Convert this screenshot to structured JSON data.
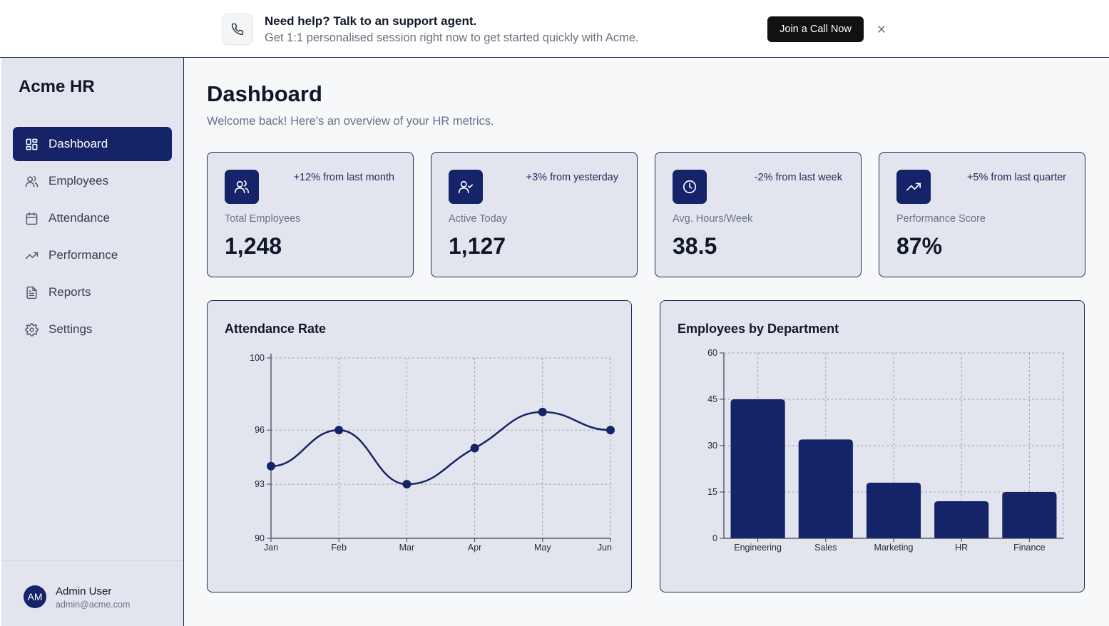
{
  "banner": {
    "title": "Need help? Talk to an support agent.",
    "subtitle": "Get 1:1 personalised session right now to get started quickly with Acme.",
    "cta_label": "Join a Call Now",
    "icon": "phone-icon",
    "close_icon": "close-icon"
  },
  "sidebar": {
    "brand": "Acme HR",
    "items": [
      {
        "label": "Dashboard",
        "icon": "dashboard-icon",
        "active": true
      },
      {
        "label": "Employees",
        "icon": "users-icon",
        "active": false
      },
      {
        "label": "Attendance",
        "icon": "calendar-icon",
        "active": false
      },
      {
        "label": "Performance",
        "icon": "trending-up-icon",
        "active": false
      },
      {
        "label": "Reports",
        "icon": "file-text-icon",
        "active": false
      },
      {
        "label": "Settings",
        "icon": "gear-icon",
        "active": false
      }
    ],
    "user": {
      "initials": "AM",
      "name": "Admin User",
      "email": "admin@acme.com"
    }
  },
  "main": {
    "title": "Dashboard",
    "subtitle": "Welcome back! Here's an overview of your HR metrics."
  },
  "stats": [
    {
      "label": "Total Employees",
      "value": "1,248",
      "change": "+12% from last month",
      "icon": "users-icon"
    },
    {
      "label": "Active Today",
      "value": "1,127",
      "change": "+3% from yesterday",
      "icon": "user-check-icon"
    },
    {
      "label": "Avg. Hours/Week",
      "value": "38.5",
      "change": "-2% from last week",
      "icon": "clock-icon"
    },
    {
      "label": "Performance Score",
      "value": "87%",
      "change": "+5% from last quarter",
      "icon": "trending-up-icon"
    }
  ],
  "colors": {
    "accent": "#152368",
    "card_bg": "#e2e5ee",
    "border": "#1e2a5a"
  },
  "chart_data": [
    {
      "type": "line",
      "title": "Attendance Rate",
      "categories": [
        "Jan",
        "Feb",
        "Mar",
        "Apr",
        "May",
        "Jun"
      ],
      "series": [
        {
          "values": [
            94,
            96,
            93,
            95,
            97,
            96
          ]
        }
      ],
      "ylim": [
        90,
        100
      ],
      "yticks": [
        90,
        93,
        96,
        100
      ],
      "grid": true,
      "smooth": true
    },
    {
      "type": "bar",
      "title": "Employees by Department",
      "categories": [
        "Engineering",
        "Sales",
        "Marketing",
        "HR",
        "Finance"
      ],
      "values": [
        45,
        32,
        18,
        12,
        15
      ],
      "ylim": [
        0,
        60
      ],
      "yticks": [
        0,
        15,
        30,
        45,
        60
      ],
      "grid": true
    }
  ]
}
